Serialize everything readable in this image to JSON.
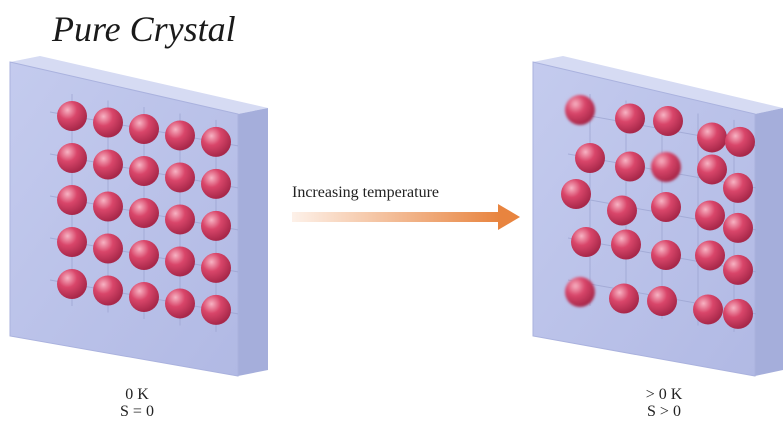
{
  "title": "Pure Crystal",
  "arrow_label": "Increasing temperature",
  "left_crystal": {
    "temperature": "0 K",
    "entropy": "S = 0"
  },
  "right_crystal": {
    "temperature": "> 0 K",
    "entropy": "S > 0"
  },
  "colors": {
    "slab_front": "#bcc4ea",
    "slab_top": "#d3d8f2",
    "slab_side": "#a4add8",
    "atom": "#c8385a",
    "atom_highlight": "#f39ab0",
    "arrow_start": "#fdeee4",
    "arrow_end": "#e8843f"
  }
}
